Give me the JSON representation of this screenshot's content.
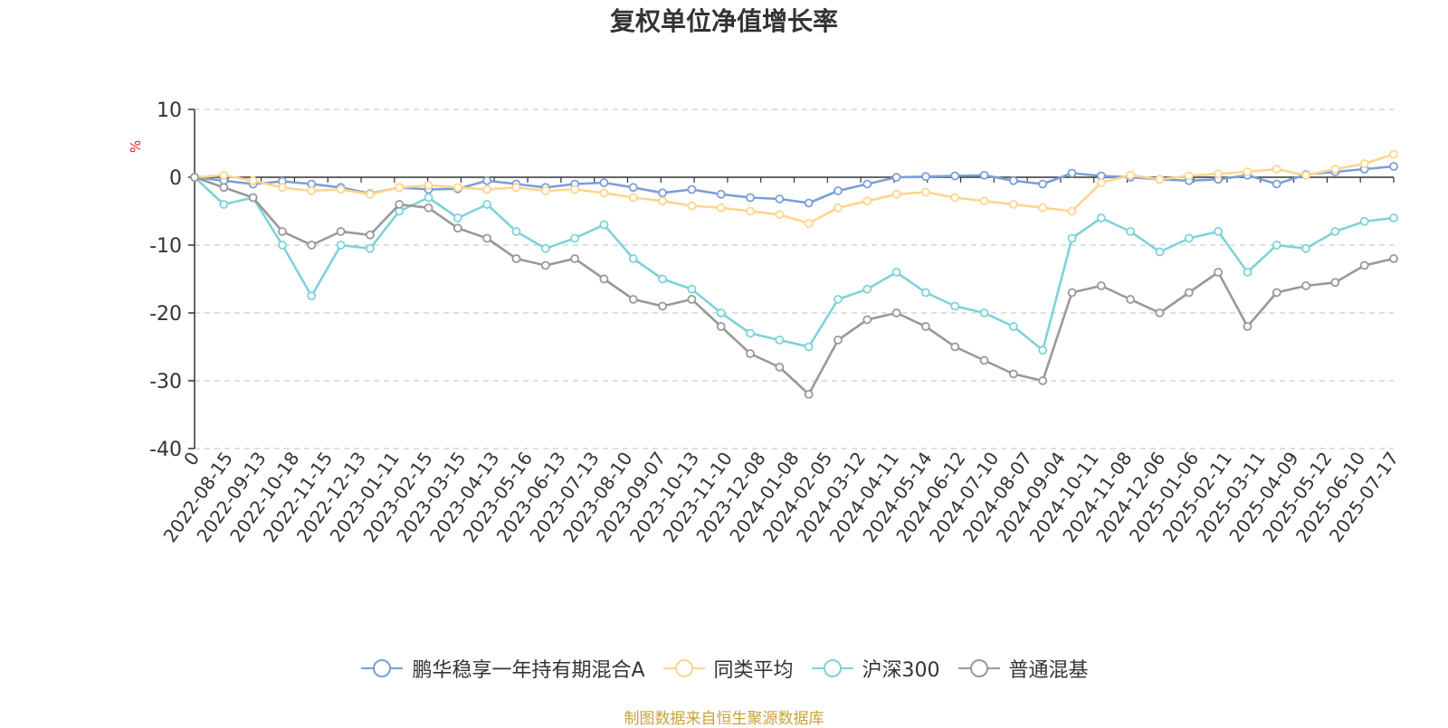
{
  "page": {
    "title": "复权单位净值增长率",
    "source": "制图数据来自恒生聚源数据库"
  },
  "colors": {
    "fund": "#7b9fd6",
    "category_avg": "#fdd590",
    "hs300": "#7dd3d8",
    "general_mixed": "#999999",
    "axis": "#333333",
    "grid": "#cccccc",
    "unit_label": "#e31a1c",
    "source": "#c8a23a"
  },
  "chart_data": {
    "type": "line",
    "title": "复权单位净值增长率",
    "ylabel": "%",
    "xlabel": "",
    "ylim": [
      -40,
      10
    ],
    "yticks": [
      10,
      0,
      -10,
      -20,
      -30,
      -40
    ],
    "grid": true,
    "legend_position": "bottom",
    "x_tick_labels": [
      "0",
      "2022-08-15",
      "2022-09-13",
      "2022-10-18",
      "2022-11-15",
      "2022-12-13",
      "2023-01-11",
      "2023-02-15",
      "2023-03-15",
      "2023-04-13",
      "2023-05-16",
      "2023-06-13",
      "2023-07-13",
      "2023-08-10",
      "2023-09-07",
      "2023-10-13",
      "2023-11-10",
      "2023-12-08",
      "2024-01-08",
      "2024-02-05",
      "2024-03-12",
      "2024-04-11",
      "2024-05-14",
      "2024-06-12",
      "2024-07-10",
      "2024-08-07",
      "2024-09-04",
      "2024-10-11",
      "2024-11-08",
      "2024-12-06",
      "2025-01-06",
      "2025-02-11",
      "2025-03-11",
      "2025-04-09",
      "2025-05-12",
      "2025-06-10",
      "2025-07-17"
    ],
    "series": [
      {
        "name": "鹏华稳享一年持有期混合A",
        "color": "#7b9fd6",
        "values": [
          0,
          -0.5,
          -1.0,
          -0.6,
          -1.0,
          -1.5,
          -2.4,
          -1.5,
          -1.8,
          -1.7,
          -0.5,
          -1.0,
          -1.5,
          -1.0,
          -0.8,
          -1.5,
          -2.3,
          -1.8,
          -2.5,
          -3.0,
          -3.2,
          -3.8,
          -2.0,
          -1.0,
          0.0,
          0.1,
          0.2,
          0.3,
          -0.5,
          -1.0,
          0.6,
          0.2,
          0.0,
          -0.3,
          -0.5,
          -0.3,
          0.3,
          -1.0,
          0.4,
          0.8,
          1.2,
          1.6
        ]
      },
      {
        "name": "同类平均",
        "color": "#fdd590",
        "values": [
          0,
          0.3,
          -0.5,
          -1.5,
          -2.0,
          -1.8,
          -2.5,
          -1.5,
          -1.2,
          -1.5,
          -1.8,
          -1.5,
          -2.0,
          -1.8,
          -2.3,
          -3.0,
          -3.5,
          -4.2,
          -4.5,
          -5.0,
          -5.5,
          -6.8,
          -4.5,
          -3.5,
          -2.5,
          -2.2,
          -3.0,
          -3.5,
          -4.0,
          -4.5,
          -5.0,
          -0.8,
          0.3,
          -0.3,
          0.2,
          0.5,
          0.8,
          1.2,
          0.3,
          1.2,
          2.0,
          3.4
        ]
      },
      {
        "name": "沪深300",
        "color": "#7dd3d8",
        "values": [
          0,
          -4.0,
          -3.0,
          -10.0,
          -17.5,
          -10.0,
          -10.5,
          -5.0,
          -3.0,
          -6.0,
          -4.0,
          -8.0,
          -10.5,
          -9.0,
          -7.0,
          -12.0,
          -15.0,
          -16.5,
          -20.0,
          -23.0,
          -24.0,
          -25.0,
          -18.0,
          -16.5,
          -14.0,
          -17.0,
          -19.0,
          -20.0,
          -22.0,
          -25.5,
          -9.0,
          -6.0,
          -8.0,
          -11.0,
          -9.0,
          -8.0,
          -14.0,
          -10.0,
          -10.5,
          -8.0,
          -6.5,
          -6.0
        ]
      },
      {
        "name": "普通混基",
        "color": "#999999",
        "values": [
          0,
          -1.5,
          -3.0,
          -8.0,
          -10.0,
          -8.0,
          -8.5,
          -4.0,
          -4.5,
          -7.5,
          -9.0,
          -12.0,
          -13.0,
          -12.0,
          -15.0,
          -18.0,
          -19.0,
          -18.0,
          -22.0,
          -26.0,
          -28.0,
          -32.0,
          -24.0,
          -21.0,
          -20.0,
          -22.0,
          -25.0,
          -27.0,
          -29.0,
          -30.0,
          -17.0,
          -16.0,
          -18.0,
          -20.0,
          -17.0,
          -14.0,
          -22.0,
          -17.0,
          -16.0,
          -15.5,
          -13.0,
          -12.0
        ]
      }
    ]
  }
}
